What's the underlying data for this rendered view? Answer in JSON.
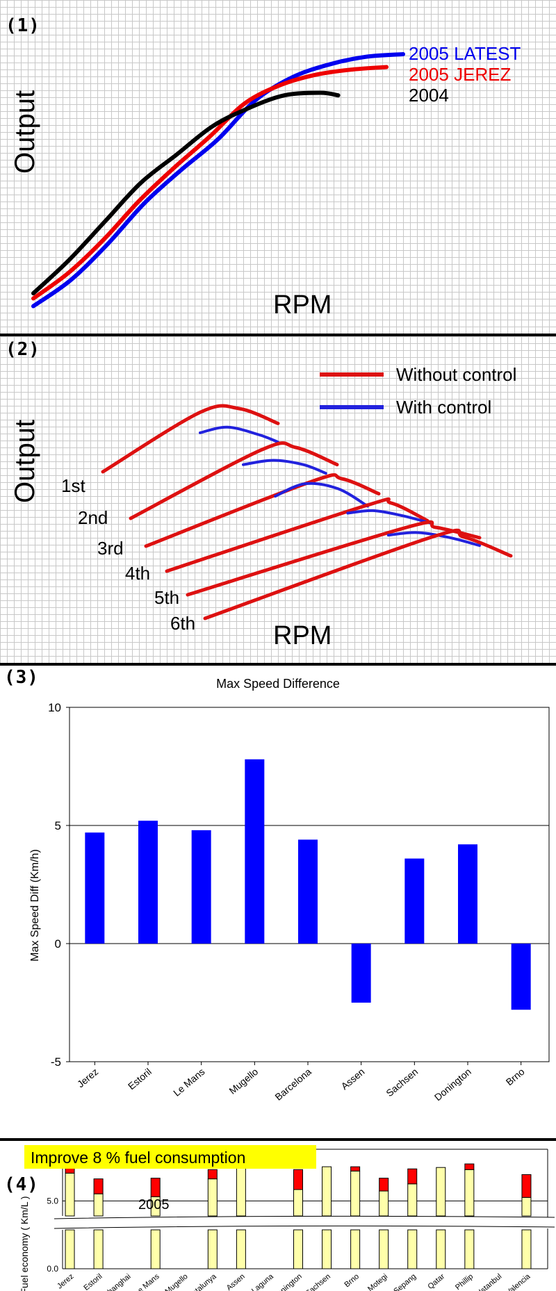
{
  "panel1": {
    "number": "(1)",
    "ylabel": "Output",
    "xlabel": "RPM",
    "chart_data": {
      "type": "line",
      "title": "",
      "xlabel": "RPM",
      "ylabel": "Output",
      "xlim": [
        0,
        100
      ],
      "ylim": [
        0,
        100
      ],
      "series": [
        {
          "name": "2005 LATEST",
          "color": "#0000ee",
          "x": [
            0,
            10,
            20,
            30,
            40,
            50,
            60,
            70,
            80,
            90,
            100
          ],
          "y": [
            2,
            12,
            26,
            42,
            55,
            67,
            82,
            91,
            96,
            99,
            100
          ]
        },
        {
          "name": "2005 JEREZ",
          "color": "#ee0000",
          "x": [
            0,
            10,
            20,
            30,
            40,
            50,
            60,
            70,
            80,
            90,
            100
          ],
          "y": [
            5,
            15,
            28,
            43,
            56,
            68,
            81,
            88,
            92,
            94,
            95
          ]
        },
        {
          "name": "2004",
          "color": "#000000",
          "x": [
            0,
            10,
            20,
            30,
            40,
            50,
            60,
            70,
            80,
            85
          ],
          "y": [
            7,
            20,
            35,
            50,
            61,
            72,
            79,
            84,
            85,
            84
          ]
        }
      ]
    }
  },
  "panel2": {
    "number": "(2)",
    "ylabel": "Output",
    "xlabel": "RPM",
    "legend": [
      {
        "label": "Without control",
        "color": "#dd1111"
      },
      {
        "label": "With control",
        "color": "#2222dd"
      }
    ],
    "gear_labels": [
      "1st",
      "2nd",
      "3rd",
      "4th",
      "5th",
      "6th"
    ],
    "chart_data": {
      "type": "line",
      "title": "",
      "xlabel": "RPM",
      "ylabel": "Output",
      "xlim": [
        0,
        100
      ],
      "ylim": [
        0,
        100
      ],
      "series": [
        {
          "name": "1st Without control",
          "color": "#dd1111",
          "x": [
            0,
            25,
            35,
            45
          ],
          "y": [
            60,
            92,
            94,
            86
          ]
        },
        {
          "name": "1st With control",
          "color": "#2222dd",
          "x": [
            25,
            32,
            40,
            45
          ],
          "y": [
            81,
            84,
            80,
            76
          ]
        },
        {
          "name": "2nd Without control",
          "color": "#dd1111",
          "x": [
            0,
            35,
            44,
            55
          ],
          "y": [
            38,
            70,
            71,
            63
          ]
        },
        {
          "name": "2nd With control",
          "color": "#2222dd",
          "x": [
            30,
            38,
            46,
            52
          ],
          "y": [
            63,
            65,
            63,
            59
          ]
        },
        {
          "name": "3rd Without control",
          "color": "#dd1111",
          "x": [
            0,
            45,
            53,
            63
          ],
          "y": [
            27,
            53,
            54,
            48
          ]
        },
        {
          "name": "3rd With control",
          "color": "#2222dd",
          "x": [
            35,
            43,
            52,
            60
          ],
          "y": [
            47,
            52,
            50,
            43
          ]
        },
        {
          "name": "4th Without control",
          "color": "#dd1111",
          "x": [
            0,
            55,
            62,
            72
          ],
          "y": [
            17,
            43,
            44,
            37
          ]
        },
        {
          "name": "4th With control",
          "color": "#2222dd",
          "x": [
            50,
            57,
            65,
            73
          ],
          "y": [
            40,
            41,
            39,
            36
          ]
        },
        {
          "name": "5th Without control",
          "color": "#dd1111",
          "x": [
            0,
            60,
            68,
            80
          ],
          "y": [
            9,
            35,
            35,
            31
          ]
        },
        {
          "name": "5th With control",
          "color": "#2222dd",
          "x": [
            55,
            63,
            72,
            80
          ],
          "y": [
            32,
            33,
            31,
            28
          ]
        },
        {
          "name": "6th Without control",
          "color": "#dd1111",
          "x": [
            0,
            63,
            72,
            85
          ],
          "y": [
            3,
            29,
            29,
            23
          ]
        }
      ]
    }
  },
  "panel3": {
    "number": "(3)",
    "chart_data": {
      "type": "bar",
      "title": "Max Speed Difference",
      "xlabel": "",
      "ylabel": "Max Speed Diff (Km/h)",
      "ylim": [
        -5,
        10
      ],
      "yticks": [
        -5,
        0,
        5,
        10
      ],
      "categories": [
        "Jerez",
        "Estoril",
        "Le Mans",
        "Mugello",
        "Barcelona",
        "Assen",
        "Sachsen",
        "Donington",
        "Brno"
      ],
      "values": [
        4.7,
        5.2,
        4.8,
        7.8,
        4.4,
        -2.5,
        3.6,
        4.2,
        -2.8
      ],
      "bar_color": "#0000ff"
    }
  },
  "panel4": {
    "number": "(4)",
    "banner": "Improve 8 % fuel consumption",
    "year_label": "2005",
    "chart_data": {
      "type": "bar",
      "title": "",
      "xlabel": "",
      "ylabel": "Fuel economy ( Km/L )",
      "y_tick_labels": [
        "5.0",
        "0.0"
      ],
      "ytick_values": [
        5.0,
        0.0
      ],
      "axis_break": true,
      "categories": [
        "Jerez",
        "Estoril",
        "Shanghai",
        "Le Mans",
        "Mugello",
        "Catalunya",
        "Assen",
        "Laguna",
        "Donington",
        "Sachsen",
        "Brno",
        "Motegi",
        "Sepang",
        "Qatar",
        "Phillip",
        "Istanbul",
        "Valencia"
      ],
      "series": [
        {
          "name": "Base",
          "color": "#ffffaa",
          "values": [
            8.9,
            6.0,
            null,
            5.6,
            null,
            8.1,
            9.6,
            null,
            6.6,
            9.8,
            9.2,
            6.4,
            7.4,
            9.7,
            9.4,
            null,
            5.5
          ]
        },
        {
          "name": "Improvement",
          "color": "#ff0000",
          "values": [
            0.8,
            2.1,
            null,
            2.6,
            null,
            1.3,
            0.3,
            null,
            2.8,
            0.0,
            0.6,
            1.8,
            2.1,
            0.0,
            0.8,
            null,
            3.2
          ]
        }
      ]
    }
  }
}
